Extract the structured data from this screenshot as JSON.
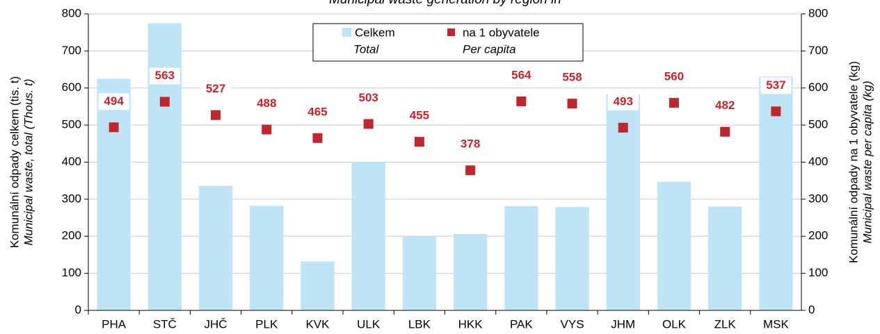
{
  "chart_data": {
    "type": "bar",
    "title": "Municipal waste generation by region in",
    "categories": [
      "PHA",
      "STČ",
      "JHČ",
      "PLK",
      "KVK",
      "ULK",
      "LBK",
      "HKK",
      "PAK",
      "VYS",
      "JHM",
      "OLK",
      "ZLK",
      "MSK"
    ],
    "series": [
      {
        "name": "Celkem",
        "name_en": "Total",
        "color": "#bfe4f6",
        "values": [
          625,
          775,
          336,
          282,
          132,
          401,
          200,
          206,
          281,
          279,
          582,
          347,
          280,
          631
        ]
      },
      {
        "name": "na 1 obyvatele",
        "name_en": "Per capita",
        "color": "#c0272d",
        "axis": "y2",
        "marker": "square",
        "values": [
          494,
          563,
          527,
          488,
          465,
          503,
          455,
          378,
          564,
          558,
          493,
          560,
          482,
          537
        ]
      }
    ],
    "ylabel": "Komunální odpady celkem (tis. t)",
    "ylabel_en": "Municipal waste, total (Thous. t)",
    "y2label": "Komunální odpady na 1 obyvatele (kg)",
    "y2label_en": "Municipal waste per capita (kg)",
    "ylim": [
      0,
      800
    ],
    "yticks": [
      0,
      100,
      200,
      300,
      400,
      500,
      600,
      700,
      800
    ],
    "y2lim": [
      0,
      800
    ],
    "y2ticks": [
      0,
      100,
      200,
      300,
      400,
      500,
      600,
      700,
      800
    ],
    "grid": true,
    "legend": "top"
  }
}
